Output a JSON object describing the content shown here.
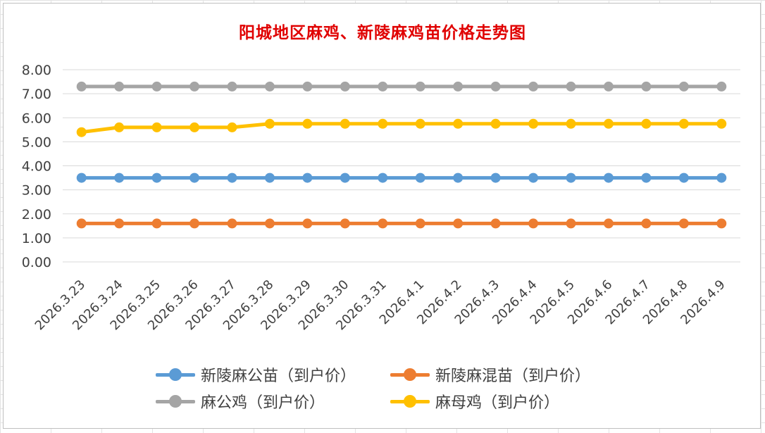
{
  "chart_data": {
    "type": "line",
    "title": "阳城地区麻鸡、新陵麻鸡苗价格走势图",
    "xlabel": "",
    "ylabel": "",
    "ylim": [
      0,
      8
    ],
    "y_ticks": [
      "0.00",
      "1.00",
      "2.00",
      "3.00",
      "4.00",
      "5.00",
      "6.00",
      "7.00",
      "8.00"
    ],
    "grid": true,
    "legend_position": "bottom",
    "categories": [
      "2026.3.23",
      "2026.3.24",
      "2026.3.25",
      "2026.3.26",
      "2026.3.27",
      "2026.3.28",
      "2026.3.29",
      "2026.3.30",
      "2026.3.31",
      "2026.4.1",
      "2026.4.2",
      "2026.4.3",
      "2026.4.4",
      "2026.4.5",
      "2026.4.6",
      "2026.4.7",
      "2026.4.8",
      "2026.4.9"
    ],
    "series": [
      {
        "name": "新陵麻公苗（到户价）",
        "color": "#5b9bd5",
        "values": [
          3.5,
          3.5,
          3.5,
          3.5,
          3.5,
          3.5,
          3.5,
          3.5,
          3.5,
          3.5,
          3.5,
          3.5,
          3.5,
          3.5,
          3.5,
          3.5,
          3.5,
          3.5
        ]
      },
      {
        "name": "新陵麻混苗（到户价）",
        "color": "#ed7d31",
        "values": [
          1.6,
          1.6,
          1.6,
          1.6,
          1.6,
          1.6,
          1.6,
          1.6,
          1.6,
          1.6,
          1.6,
          1.6,
          1.6,
          1.6,
          1.6,
          1.6,
          1.6,
          1.6
        ]
      },
      {
        "name": "麻公鸡（到户价）",
        "color": "#a5a5a5",
        "values": [
          7.3,
          7.3,
          7.3,
          7.3,
          7.3,
          7.3,
          7.3,
          7.3,
          7.3,
          7.3,
          7.3,
          7.3,
          7.3,
          7.3,
          7.3,
          7.3,
          7.3,
          7.3
        ]
      },
      {
        "name": "麻母鸡（到户价）",
        "color": "#ffc000",
        "values": [
          5.4,
          5.6,
          5.6,
          5.6,
          5.6,
          5.75,
          5.75,
          5.75,
          5.75,
          5.75,
          5.75,
          5.75,
          5.75,
          5.75,
          5.75,
          5.75,
          5.75,
          5.75
        ]
      }
    ]
  }
}
